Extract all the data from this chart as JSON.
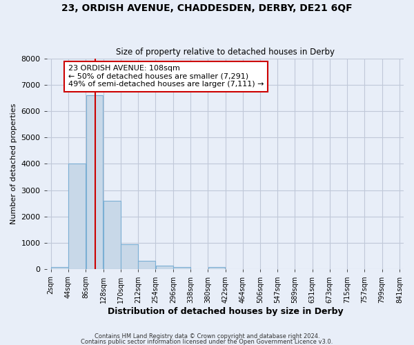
{
  "title1": "23, ORDISH AVENUE, CHADDESDEN, DERBY, DE21 6QF",
  "title2": "Size of property relative to detached houses in Derby",
  "xlabel": "Distribution of detached houses by size in Derby",
  "ylabel": "Number of detached properties",
  "bin_edges": [
    2,
    44,
    86,
    128,
    170,
    212,
    254,
    296,
    338,
    380,
    422,
    464,
    506,
    547,
    589,
    631,
    673,
    715,
    757,
    799,
    841
  ],
  "bar_heights": [
    100,
    4000,
    6600,
    2600,
    950,
    320,
    130,
    100,
    0,
    80,
    0,
    0,
    0,
    0,
    0,
    0,
    0,
    0,
    0,
    0
  ],
  "bar_color": "#c8d8e8",
  "bar_edge_color": "#7bafd4",
  "property_size": 108,
  "red_line_color": "#cc0000",
  "annotation_line1": "23 ORDISH AVENUE: 108sqm",
  "annotation_line2": "← 50% of detached houses are smaller (7,291)",
  "annotation_line3": "49% of semi-detached houses are larger (7,111) →",
  "annotation_box_color": "white",
  "annotation_box_edge": "#cc0000",
  "ylim": [
    0,
    8000
  ],
  "yticks": [
    0,
    1000,
    2000,
    3000,
    4000,
    5000,
    6000,
    7000,
    8000
  ],
  "grid_color": "#c0c8d8",
  "background_color": "#e8eef8",
  "footer1": "Contains HM Land Registry data © Crown copyright and database right 2024.",
  "footer2": "Contains public sector information licensed under the Open Government Licence v3.0."
}
